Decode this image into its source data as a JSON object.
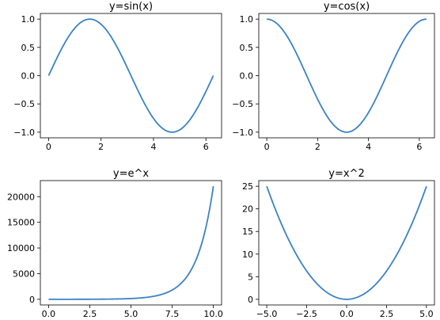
{
  "figure": {
    "background": "#ffffff",
    "line_color": "#3b82c4"
  },
  "chart_data": [
    {
      "id": "sin",
      "type": "line",
      "title": "y=sin(x)",
      "xlabel": "",
      "ylabel": "",
      "function": "sin(x)",
      "x_domain": [
        0,
        6.283
      ],
      "xlim": [
        -0.314,
        6.597
      ],
      "ylim": [
        -1.1,
        1.1
      ],
      "xticks": [
        0,
        2,
        4,
        6
      ],
      "xtick_labels": [
        "0",
        "2",
        "4",
        "6"
      ],
      "yticks": [
        1.0,
        0.5,
        0.0,
        -0.5,
        -1.0
      ],
      "ytick_labels": [
        "1.0",
        "0.5",
        "0.0",
        "−0.5",
        "−1.0"
      ],
      "grid": false,
      "series": [
        {
          "x": [
            0,
            0.785,
            1.571,
            2.356,
            3.142,
            3.927,
            4.712,
            5.498,
            6.283
          ],
          "y": [
            0,
            0.707,
            1.0,
            0.707,
            0.0,
            -0.707,
            -1.0,
            -0.707,
            0.0
          ]
        }
      ]
    },
    {
      "id": "cos",
      "type": "line",
      "title": "y=cos(x)",
      "xlabel": "",
      "ylabel": "",
      "function": "cos(x)",
      "x_domain": [
        0,
        6.283
      ],
      "xlim": [
        -0.314,
        6.597
      ],
      "ylim": [
        -1.1,
        1.1
      ],
      "xticks": [
        0,
        2,
        4,
        6
      ],
      "xtick_labels": [
        "0",
        "2",
        "4",
        "6"
      ],
      "yticks": [
        1.0,
        0.5,
        0.0,
        -0.5,
        -1.0
      ],
      "ytick_labels": [
        "1.0",
        "0.5",
        "0.0",
        "−0.5",
        "−1.0"
      ],
      "grid": false,
      "series": [
        {
          "x": [
            0,
            0.785,
            1.571,
            2.356,
            3.142,
            3.927,
            4.712,
            5.498,
            6.283
          ],
          "y": [
            1.0,
            0.707,
            0.0,
            -0.707,
            -1.0,
            -0.707,
            0.0,
            0.707,
            1.0
          ]
        }
      ]
    },
    {
      "id": "exp",
      "type": "line",
      "title": "y=e^x",
      "xlabel": "",
      "ylabel": "",
      "function": "exp(x)",
      "x_domain": [
        0,
        10
      ],
      "xlim": [
        -0.5,
        10.5
      ],
      "ylim": [
        -1101,
        23127
      ],
      "xticks": [
        0,
        2.5,
        5,
        7.5,
        10
      ],
      "xtick_labels": [
        "0.0",
        "2.5",
        "5.0",
        "7.5",
        "10.0"
      ],
      "yticks": [
        20000,
        15000,
        10000,
        5000,
        0
      ],
      "ytick_labels": [
        "20000",
        "15000",
        "10000",
        "5000",
        "0"
      ],
      "grid": false,
      "series": [
        {
          "x": [
            0,
            2,
            4,
            6,
            7,
            8,
            9,
            10
          ],
          "y": [
            1,
            7.4,
            54.6,
            403,
            1097,
            2981,
            8103,
            22026
          ]
        }
      ]
    },
    {
      "id": "square",
      "type": "line",
      "title": "y=x^2",
      "xlabel": "",
      "ylabel": "",
      "function": "x*x",
      "x_domain": [
        -5,
        5
      ],
      "xlim": [
        -5.5,
        5.5
      ],
      "ylim": [
        -1.25,
        26.25
      ],
      "xticks": [
        -5,
        -2.5,
        0,
        2.5,
        5
      ],
      "xtick_labels": [
        "−5.0",
        "−2.5",
        "0.0",
        "2.5",
        "5.0"
      ],
      "yticks": [
        25,
        20,
        15,
        10,
        5,
        0
      ],
      "ytick_labels": [
        "25",
        "20",
        "15",
        "10",
        "5",
        "0"
      ],
      "grid": false,
      "series": [
        {
          "x": [
            -5,
            -4,
            -3,
            -2,
            -1,
            0,
            1,
            2,
            3,
            4,
            5
          ],
          "y": [
            25,
            16,
            9,
            4,
            1,
            0,
            1,
            4,
            9,
            16,
            25
          ]
        }
      ]
    }
  ]
}
